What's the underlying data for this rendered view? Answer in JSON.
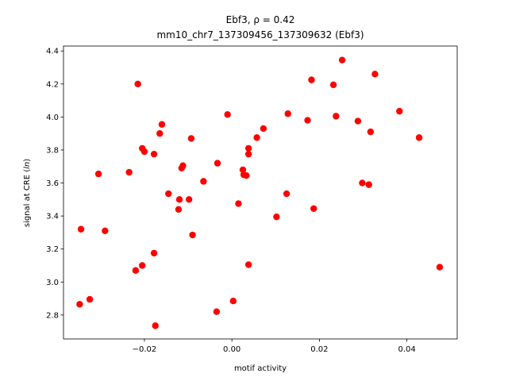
{
  "chart_data": {
    "type": "scatter",
    "title_line1": "Ebf3, ρ = 0.42",
    "title_line2": "mm10_chr7_137309456_137309632 (Ebf3)",
    "xlabel": "motif activity",
    "ylabel": "signal at CRE (ln)",
    "xlim": [
      -0.0385,
      0.0515
    ],
    "ylim": [
      2.655,
      4.43
    ],
    "xticks": [
      -0.02,
      0.0,
      0.02,
      0.04
    ],
    "xtick_labels": [
      "−0.02",
      "0.00",
      "0.02",
      "0.04"
    ],
    "yticks": [
      2.8,
      3.0,
      3.2,
      3.4,
      3.6,
      3.8,
      4.0,
      4.2,
      4.4
    ],
    "ytick_labels": [
      "2.8",
      "3.0",
      "3.2",
      "3.4",
      "3.6",
      "3.8",
      "4.0",
      "4.2",
      "4.4"
    ],
    "grid": false,
    "marker_color": "#ff0000",
    "points": [
      {
        "x": -0.0348,
        "y": 2.865
      },
      {
        "x": -0.0345,
        "y": 3.32
      },
      {
        "x": -0.0325,
        "y": 2.895
      },
      {
        "x": -0.0305,
        "y": 3.655
      },
      {
        "x": -0.029,
        "y": 3.31
      },
      {
        "x": -0.0235,
        "y": 3.665
      },
      {
        "x": -0.022,
        "y": 3.07
      },
      {
        "x": -0.0215,
        "y": 4.2
      },
      {
        "x": -0.0205,
        "y": 3.81
      },
      {
        "x": -0.0205,
        "y": 3.1
      },
      {
        "x": -0.02,
        "y": 3.79
      },
      {
        "x": -0.0178,
        "y": 3.175
      },
      {
        "x": -0.0178,
        "y": 3.775
      },
      {
        "x": -0.0175,
        "y": 2.735
      },
      {
        "x": -0.0165,
        "y": 3.9
      },
      {
        "x": -0.016,
        "y": 3.955
      },
      {
        "x": -0.0145,
        "y": 3.535
      },
      {
        "x": -0.0122,
        "y": 3.44
      },
      {
        "x": -0.012,
        "y": 3.5
      },
      {
        "x": -0.0115,
        "y": 3.69
      },
      {
        "x": -0.0112,
        "y": 3.705
      },
      {
        "x": -0.0098,
        "y": 3.5
      },
      {
        "x": -0.0093,
        "y": 3.87
      },
      {
        "x": -0.009,
        "y": 3.285
      },
      {
        "x": -0.0065,
        "y": 3.61
      },
      {
        "x": -0.0035,
        "y": 2.82
      },
      {
        "x": -0.0033,
        "y": 3.72
      },
      {
        "x": -0.001,
        "y": 4.015
      },
      {
        "x": 0.0003,
        "y": 2.885
      },
      {
        "x": 0.0015,
        "y": 3.475
      },
      {
        "x": 0.0025,
        "y": 3.68
      },
      {
        "x": 0.0027,
        "y": 3.65
      },
      {
        "x": 0.0033,
        "y": 3.645
      },
      {
        "x": 0.0038,
        "y": 3.81
      },
      {
        "x": 0.0038,
        "y": 3.775
      },
      {
        "x": 0.0038,
        "y": 3.105
      },
      {
        "x": 0.0057,
        "y": 3.875
      },
      {
        "x": 0.0072,
        "y": 3.93
      },
      {
        "x": 0.0102,
        "y": 3.395
      },
      {
        "x": 0.0125,
        "y": 3.535
      },
      {
        "x": 0.0128,
        "y": 4.02
      },
      {
        "x": 0.0173,
        "y": 3.98
      },
      {
        "x": 0.0182,
        "y": 4.225
      },
      {
        "x": 0.0187,
        "y": 3.445
      },
      {
        "x": 0.0232,
        "y": 4.195
      },
      {
        "x": 0.0238,
        "y": 4.005
      },
      {
        "x": 0.0252,
        "y": 4.345
      },
      {
        "x": 0.0288,
        "y": 3.975
      },
      {
        "x": 0.0298,
        "y": 3.6
      },
      {
        "x": 0.0313,
        "y": 3.59
      },
      {
        "x": 0.0317,
        "y": 3.91
      },
      {
        "x": 0.0327,
        "y": 4.26
      },
      {
        "x": 0.0383,
        "y": 4.035
      },
      {
        "x": 0.0428,
        "y": 3.875
      },
      {
        "x": 0.0475,
        "y": 3.09
      }
    ]
  }
}
